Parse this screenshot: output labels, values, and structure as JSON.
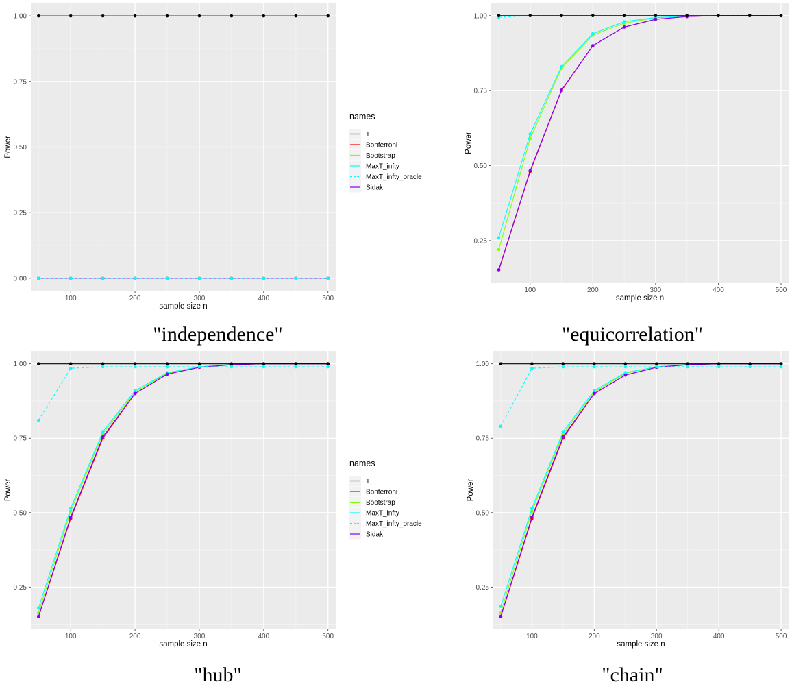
{
  "colors": {
    "1": "#000000",
    "Bonferroni": "#ff0000",
    "Bootstrap": "#80ff00",
    "MaxT_infty": "#00ffff",
    "MaxT_infty_oracle": "#00ffff",
    "Sidak": "#8000ff"
  },
  "legend": {
    "title": "names",
    "entries": [
      "1",
      "Bonferroni",
      "Bootstrap",
      "MaxT_infty",
      "MaxT_infty_oracle",
      "Sidak"
    ]
  },
  "chart_data": [
    {
      "type": "line",
      "caption": "\"independence\"",
      "xlabel": "sample size n",
      "ylabel": "Power",
      "xticks": [
        100,
        200,
        300,
        400,
        500
      ],
      "yticks": [
        "0.00",
        "0.25",
        "0.50",
        "0.75",
        "1.00"
      ],
      "ytick_values": [
        0,
        0.25,
        0.5,
        0.75,
        1.0
      ],
      "xlim": [
        38,
        512
      ],
      "ylim": [
        -0.05,
        1.05
      ],
      "x": [
        50,
        100,
        150,
        200,
        250,
        300,
        350,
        400,
        450,
        500
      ],
      "series": [
        {
          "name": "1",
          "values": [
            1,
            1,
            1,
            1,
            1,
            1,
            1,
            1,
            1,
            1
          ]
        },
        {
          "name": "Bonferroni",
          "values": [
            0,
            0,
            0,
            0,
            0,
            0,
            0,
            0,
            0,
            0
          ]
        },
        {
          "name": "Bootstrap",
          "values": [
            0,
            0,
            0,
            0,
            0,
            0,
            0,
            0,
            0,
            0
          ]
        },
        {
          "name": "MaxT_infty",
          "values": [
            0,
            0,
            0,
            0,
            0,
            0,
            0,
            0,
            0,
            0
          ]
        },
        {
          "name": "MaxT_infty_oracle",
          "values": [
            0,
            0,
            0,
            0,
            0,
            0,
            0,
            0,
            0,
            0
          ],
          "dashed": true
        },
        {
          "name": "Sidak",
          "values": [
            0,
            0,
            0,
            0,
            0,
            0,
            0,
            0,
            0,
            0
          ]
        }
      ]
    },
    {
      "type": "line",
      "caption": "\"equicorrelation\"",
      "xlabel": "sample size n",
      "ylabel": "Power",
      "xticks": [
        100,
        200,
        300,
        400,
        500
      ],
      "yticks": [
        "0.25",
        "0.50",
        "0.75",
        "1.00"
      ],
      "ytick_values": [
        0.25,
        0.5,
        0.75,
        1.0
      ],
      "xlim": [
        38,
        512
      ],
      "ylim": [
        0.108,
        1.043
      ],
      "x": [
        50,
        100,
        150,
        200,
        250,
        300,
        350,
        400,
        450,
        500
      ],
      "series": [
        {
          "name": "1",
          "values": [
            1,
            1,
            1,
            1,
            1,
            1,
            1,
            1,
            1,
            1
          ]
        },
        {
          "name": "Bonferroni",
          "values": [
            0.15,
            0.48,
            0.75,
            0.9,
            0.962,
            0.988,
            0.997,
            1.0,
            1.0,
            1.0
          ]
        },
        {
          "name": "Bootstrap",
          "values": [
            0.22,
            0.59,
            0.825,
            0.935,
            0.975,
            0.993,
            0.998,
            1.0,
            1.0,
            1.0
          ]
        },
        {
          "name": "MaxT_infty",
          "values": [
            0.26,
            0.605,
            0.83,
            0.94,
            0.98,
            0.994,
            0.998,
            1.0,
            1.0,
            1.0
          ]
        },
        {
          "name": "MaxT_infty_oracle",
          "values": [
            0.995,
            1.0,
            1.0,
            1.0,
            1.0,
            1.0,
            1.0,
            1.0,
            1.0,
            1.0
          ],
          "dashed": true
        },
        {
          "name": "Sidak",
          "values": [
            0.153,
            0.483,
            0.752,
            0.9,
            0.962,
            0.988,
            0.997,
            1.0,
            1.0,
            1.0
          ]
        }
      ]
    },
    {
      "type": "line",
      "caption": "\"hub\"",
      "xlabel": "sample size n",
      "ylabel": "Power",
      "xticks": [
        100,
        200,
        300,
        400,
        500
      ],
      "yticks": [
        "0.25",
        "0.50",
        "0.75",
        "1.00"
      ],
      "ytick_values": [
        0.25,
        0.5,
        0.75,
        1.0
      ],
      "xlim": [
        38,
        512
      ],
      "ylim": [
        0.108,
        1.043
      ],
      "x": [
        50,
        100,
        150,
        200,
        250,
        300,
        350,
        400,
        450,
        500
      ],
      "series": [
        {
          "name": "1",
          "values": [
            1,
            1,
            1,
            1,
            1,
            1,
            1,
            1,
            1,
            1
          ]
        },
        {
          "name": "Bonferroni",
          "values": [
            0.15,
            0.48,
            0.75,
            0.9,
            0.965,
            0.988,
            0.997,
            1.0,
            1.0,
            1.0
          ]
        },
        {
          "name": "Bootstrap",
          "values": [
            0.165,
            0.505,
            0.765,
            0.905,
            0.968,
            0.99,
            0.997,
            1.0,
            1.0,
            1.0
          ]
        },
        {
          "name": "MaxT_infty",
          "values": [
            0.18,
            0.515,
            0.772,
            0.91,
            0.97,
            0.99,
            0.998,
            1.0,
            1.0,
            1.0
          ]
        },
        {
          "name": "MaxT_infty_oracle",
          "values": [
            0.81,
            0.985,
            0.99,
            0.99,
            0.99,
            0.99,
            0.99,
            0.99,
            0.99,
            0.99
          ],
          "dashed": true
        },
        {
          "name": "Sidak",
          "values": [
            0.152,
            0.485,
            0.755,
            0.9,
            0.965,
            0.988,
            0.997,
            1.0,
            1.0,
            1.0
          ]
        }
      ]
    },
    {
      "type": "line",
      "caption": "\"chain\"",
      "xlabel": "sample size n",
      "ylabel": "Power",
      "xticks": [
        100,
        200,
        300,
        400,
        500
      ],
      "yticks": [
        "0.25",
        "0.50",
        "0.75",
        "1.00"
      ],
      "ytick_values": [
        0.25,
        0.5,
        0.75,
        1.0
      ],
      "xlim": [
        38,
        512
      ],
      "ylim": [
        0.108,
        1.043
      ],
      "x": [
        50,
        100,
        150,
        200,
        250,
        300,
        350,
        400,
        450,
        500
      ],
      "series": [
        {
          "name": "1",
          "values": [
            1,
            1,
            1,
            1,
            1,
            1,
            1,
            1,
            1,
            1
          ]
        },
        {
          "name": "Bonferroni",
          "values": [
            0.15,
            0.48,
            0.75,
            0.9,
            0.962,
            0.988,
            0.997,
            1.0,
            1.0,
            1.0
          ]
        },
        {
          "name": "Bootstrap",
          "values": [
            0.165,
            0.505,
            0.765,
            0.905,
            0.968,
            0.99,
            0.997,
            1.0,
            1.0,
            1.0
          ]
        },
        {
          "name": "MaxT_infty",
          "values": [
            0.185,
            0.515,
            0.772,
            0.91,
            0.97,
            0.99,
            0.998,
            1.0,
            1.0,
            1.0
          ]
        },
        {
          "name": "MaxT_infty_oracle",
          "values": [
            0.79,
            0.985,
            0.99,
            0.99,
            0.99,
            0.99,
            0.99,
            0.99,
            0.99,
            0.99
          ],
          "dashed": true
        },
        {
          "name": "Sidak",
          "values": [
            0.152,
            0.485,
            0.755,
            0.9,
            0.962,
            0.988,
            0.997,
            1.0,
            1.0,
            1.0
          ]
        }
      ]
    }
  ]
}
